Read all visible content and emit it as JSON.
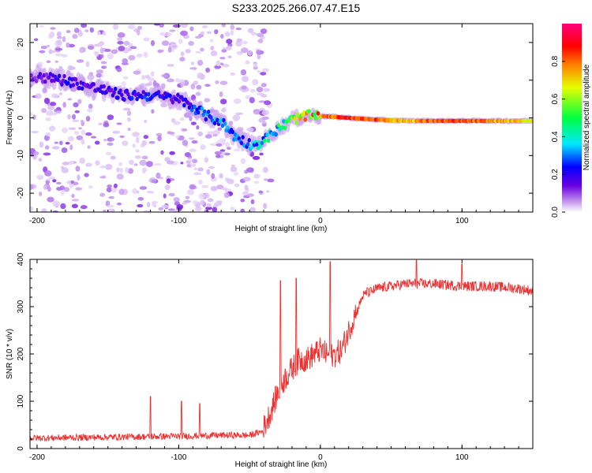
{
  "title": "S233.2025.266.07.47.E15",
  "chart_data": [
    {
      "type": "heatmap",
      "xlabel": "Height of straight line (km)",
      "ylabel": "Frequency (Hz)",
      "xlim": [
        -205,
        150
      ],
      "ylim": [
        -25,
        25
      ],
      "xticks": [
        -200,
        -100,
        0,
        100
      ],
      "yticks": [
        -20,
        -10,
        0,
        10,
        20
      ],
      "colorbar": {
        "label": "Normalized spectral amplitude",
        "range": [
          0,
          1
        ],
        "ticks": [
          "0.0",
          "0.2",
          "0.4",
          "0.6",
          "0.8"
        ],
        "colors": [
          "#ffffff",
          "#c9a0f0",
          "#6a00e0",
          "#0000ff",
          "#00e8ff",
          "#00ff40",
          "#e6ff00",
          "#ff8000",
          "#ff0000",
          "#ff0080"
        ]
      },
      "ridge": {
        "x": [
          -200,
          -180,
          -160,
          -140,
          -120,
          -100,
          -90,
          -80,
          -70,
          -60,
          -50,
          -45,
          -40,
          -30,
          -20,
          -10,
          0,
          20,
          40,
          60,
          80,
          100,
          120,
          150
        ],
        "freq": [
          11,
          10,
          8,
          6,
          6,
          5,
          3,
          0.5,
          -1,
          -5,
          -7,
          -7,
          -6,
          -3,
          -0.5,
          0.5,
          0.5,
          0,
          -0.5,
          -0.8,
          -0.8,
          -0.8,
          -0.8,
          -0.8
        ],
        "peak_amplitude": [
          0.15,
          0.2,
          0.2,
          0.22,
          0.25,
          0.2,
          0.25,
          0.3,
          0.3,
          0.3,
          0.3,
          0.35,
          0.4,
          0.45,
          0.6,
          0.85,
          0.8,
          0.9,
          0.85,
          0.75,
          0.85,
          0.85,
          0.8,
          0.7
        ]
      }
    },
    {
      "type": "line",
      "xlabel": "Height of straight line (km)",
      "ylabel": "SNR (10 * v/v)",
      "xlim": [
        -205,
        150
      ],
      "ylim": [
        0,
        400
      ],
      "xticks": [
        -200,
        -100,
        0,
        100
      ],
      "yticks": [
        0,
        100,
        200,
        300,
        400
      ],
      "color": "#ee3030",
      "trend": {
        "x": [
          -205,
          -150,
          -100,
          -70,
          -50,
          -40,
          -35,
          -30,
          -25,
          -20,
          -15,
          -10,
          -5,
          0,
          5,
          10,
          15,
          20,
          25,
          30,
          40,
          60,
          80,
          100,
          120,
          140,
          150
        ],
        "y": [
          20,
          22,
          24,
          26,
          26,
          35,
          70,
          110,
          140,
          160,
          180,
          180,
          190,
          200,
          190,
          190,
          200,
          240,
          280,
          320,
          335,
          345,
          345,
          340,
          340,
          335,
          330
        ]
      },
      "spikes": [
        {
          "x": -120,
          "y": 110
        },
        {
          "x": -98,
          "y": 100
        },
        {
          "x": -85,
          "y": 95
        },
        {
          "x": -28,
          "y": 355
        },
        {
          "x": -17,
          "y": 360
        },
        {
          "x": 7,
          "y": 395
        },
        {
          "x": 33,
          "y": 340
        },
        {
          "x": 68,
          "y": 398
        },
        {
          "x": 100,
          "y": 390
        }
      ]
    }
  ]
}
